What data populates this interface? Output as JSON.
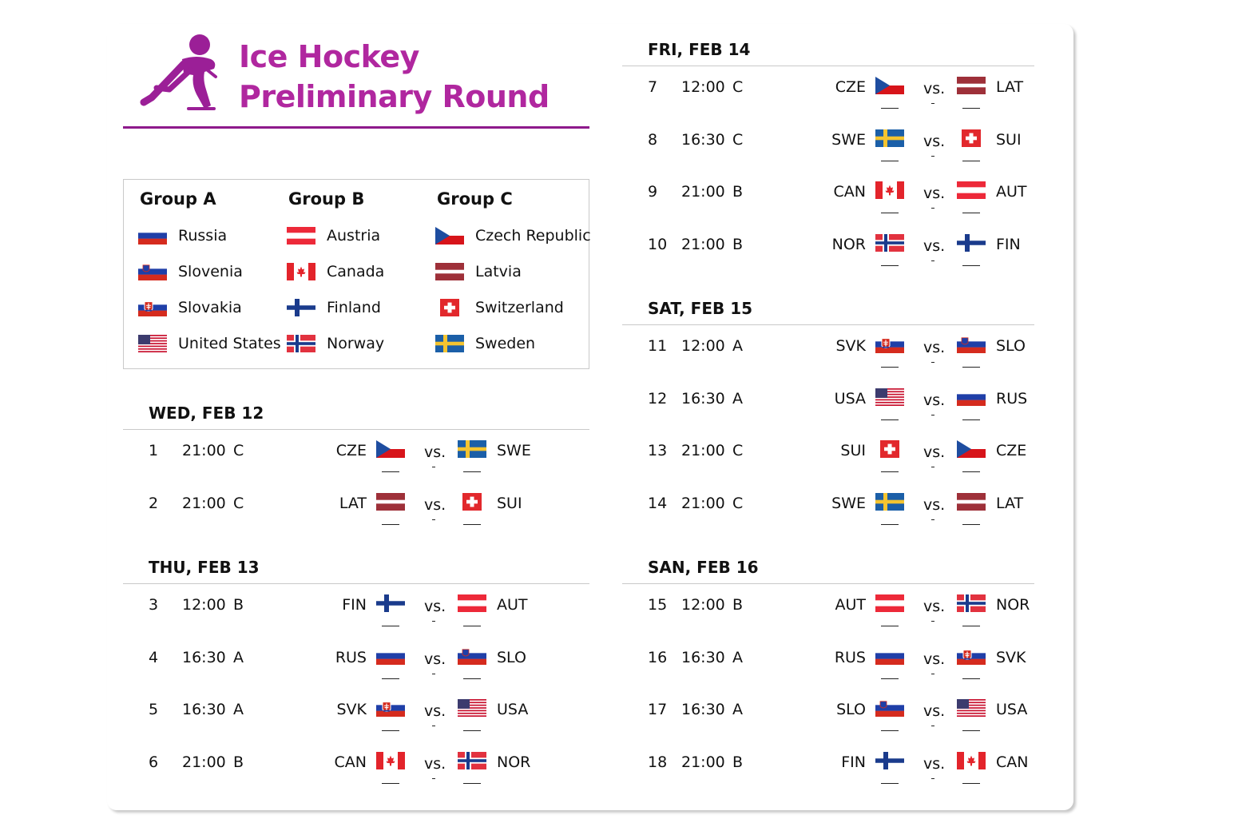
{
  "header": {
    "title_line1": "Ice Hockey",
    "title_line2": "Preliminary Round",
    "logo_icon": "ice-hockey-player-icon",
    "accent_color": "#b0279f",
    "rule_color": "#8e1a8c"
  },
  "groups": [
    {
      "name": "Group A",
      "teams": [
        {
          "name": "Russia",
          "code": "RUS"
        },
        {
          "name": "Slovenia",
          "code": "SLO"
        },
        {
          "name": "Slovakia",
          "code": "SVK"
        },
        {
          "name": "United States",
          "code": "USA"
        }
      ]
    },
    {
      "name": "Group B",
      "teams": [
        {
          "name": "Austria",
          "code": "AUT"
        },
        {
          "name": "Canada",
          "code": "CAN"
        },
        {
          "name": "Finland",
          "code": "FIN"
        },
        {
          "name": "Norway",
          "code": "NOR"
        }
      ]
    },
    {
      "name": "Group C",
      "teams": [
        {
          "name": "Czech Republic",
          "code": "CZE"
        },
        {
          "name": "Latvia",
          "code": "LAT"
        },
        {
          "name": "Switzerland",
          "code": "SUI"
        },
        {
          "name": "Sweden",
          "code": "SWE"
        }
      ]
    }
  ],
  "vs_label": "vs.",
  "days": [
    {
      "title": "WED, FEB 12",
      "matches": [
        {
          "num": "1",
          "time": "21:00",
          "group": "C",
          "home": "CZE",
          "away": "SWE"
        },
        {
          "num": "2",
          "time": "21:00",
          "group": "C",
          "home": "LAT",
          "away": "SUI"
        }
      ]
    },
    {
      "title": "THU, FEB 13",
      "matches": [
        {
          "num": "3",
          "time": "12:00",
          "group": "B",
          "home": "FIN",
          "away": "AUT"
        },
        {
          "num": "4",
          "time": "16:30",
          "group": "A",
          "home": "RUS",
          "away": "SLO"
        },
        {
          "num": "5",
          "time": "16:30",
          "group": "A",
          "home": "SVK",
          "away": "USA"
        },
        {
          "num": "6",
          "time": "21:00",
          "group": "B",
          "home": "CAN",
          "away": "NOR"
        }
      ]
    },
    {
      "title": "FRI, FEB 14",
      "matches": [
        {
          "num": "7",
          "time": "12:00",
          "group": "C",
          "home": "CZE",
          "away": "LAT"
        },
        {
          "num": "8",
          "time": "16:30",
          "group": "C",
          "home": "SWE",
          "away": "SUI"
        },
        {
          "num": "9",
          "time": "21:00",
          "group": "B",
          "home": "CAN",
          "away": "AUT"
        },
        {
          "num": "10",
          "time": "21:00",
          "group": "B",
          "home": "NOR",
          "away": "FIN"
        }
      ]
    },
    {
      "title": "SAT, FEB 15",
      "matches": [
        {
          "num": "11",
          "time": "12:00",
          "group": "A",
          "home": "SVK",
          "away": "SLO"
        },
        {
          "num": "12",
          "time": "16:30",
          "group": "A",
          "home": "USA",
          "away": "RUS"
        },
        {
          "num": "13",
          "time": "21:00",
          "group": "C",
          "home": "SUI",
          "away": "CZE"
        },
        {
          "num": "14",
          "time": "21:00",
          "group": "C",
          "home": "SWE",
          "away": "LAT"
        }
      ]
    },
    {
      "title": "SAN, FEB 16",
      "matches": [
        {
          "num": "15",
          "time": "12:00",
          "group": "B",
          "home": "AUT",
          "away": "NOR"
        },
        {
          "num": "16",
          "time": "16:30",
          "group": "A",
          "home": "RUS",
          "away": "SVK"
        },
        {
          "num": "17",
          "time": "16:30",
          "group": "A",
          "home": "SLO",
          "away": "USA"
        },
        {
          "num": "18",
          "time": "21:00",
          "group": "B",
          "home": "FIN",
          "away": "CAN"
        }
      ]
    }
  ]
}
